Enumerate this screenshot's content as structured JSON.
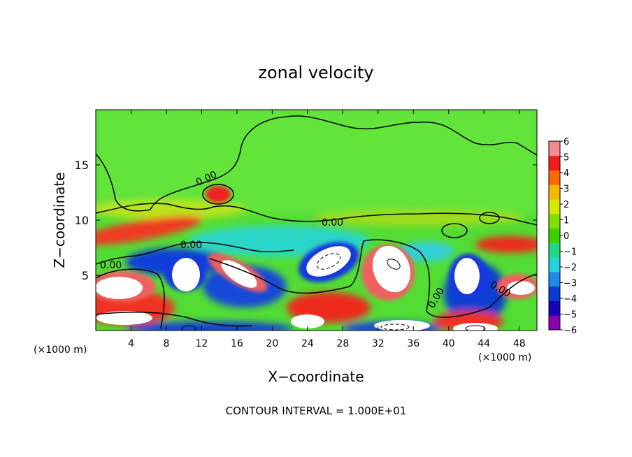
{
  "chart_data": {
    "type": "heatmap",
    "title": "zonal velocity",
    "xlabel": "X−coordinate",
    "ylabel": "Z−coordinate",
    "x_unit_left": "(×1000 m)",
    "x_unit_right": "(×1000 m)",
    "footer": "CONTOUR INTERVAL = 1.000E+01",
    "xlim": [
      0,
      50
    ],
    "ylim": [
      0,
      20
    ],
    "x_ticks": [
      4,
      8,
      12,
      16,
      20,
      24,
      28,
      32,
      36,
      40,
      44,
      48
    ],
    "x_tick_labels": [
      "4",
      "8",
      "12",
      "16",
      "20",
      "24",
      "28",
      "32",
      "36",
      "40",
      "44",
      "48"
    ],
    "y_ticks": [
      5,
      10,
      15
    ],
    "y_tick_labels": [
      "5",
      "10",
      "15"
    ],
    "colorbar": {
      "range": [
        -6,
        6
      ],
      "tick_labels": [
        "6",
        "5",
        "4",
        "3",
        "2",
        "1",
        "0",
        "−1",
        "−2",
        "−3",
        "−4",
        "−5",
        "−6"
      ],
      "colors": [
        "#8a00b0",
        "#1a00b8",
        "#0a3cd6",
        "#1d8aea",
        "#22d2dc",
        "#22d884",
        "#3ad000",
        "#7fe000",
        "#d8e800",
        "#f4b800",
        "#ff6a00",
        "#ee1c1c",
        "#f28c8c"
      ]
    },
    "contour_labels": [
      "0.00",
      "0.00",
      "0.00",
      "0.00",
      "0.00",
      "0.00"
    ]
  }
}
